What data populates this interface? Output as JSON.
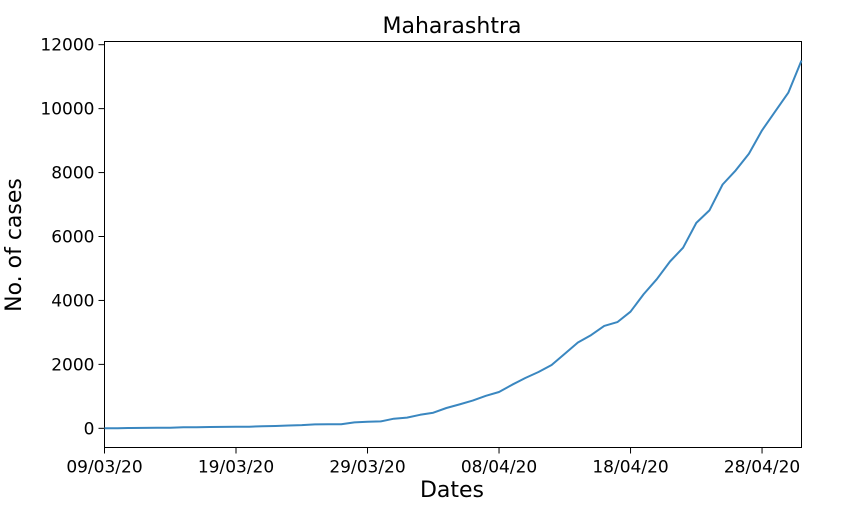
{
  "chart_data": {
    "type": "line",
    "title": "Maharashtra",
    "xlabel": "Dates",
    "ylabel": "No. of cases",
    "x_ticks": [
      "09/03/20",
      "19/03/20",
      "29/03/20",
      "08/04/20",
      "18/04/20",
      "28/04/20"
    ],
    "y_ticks": [
      "0",
      "2000",
      "4000",
      "6000",
      "8000",
      "10000",
      "12000"
    ],
    "ylim": [
      -600,
      12100
    ],
    "xlim": [
      "09/03/20",
      "01/05/20"
    ],
    "grid": false,
    "series": [
      {
        "color": "#3a87c0",
        "x": [
          "09/03/20",
          "10/03/20",
          "11/03/20",
          "12/03/20",
          "13/03/20",
          "14/03/20",
          "15/03/20",
          "16/03/20",
          "17/03/20",
          "18/03/20",
          "19/03/20",
          "20/03/20",
          "21/03/20",
          "22/03/20",
          "23/03/20",
          "24/03/20",
          "25/03/20",
          "26/03/20",
          "27/03/20",
          "28/03/20",
          "29/03/20",
          "30/03/20",
          "31/03/20",
          "01/04/20",
          "02/04/20",
          "03/04/20",
          "04/04/20",
          "05/04/20",
          "06/04/20",
          "07/04/20",
          "08/04/20",
          "09/04/20",
          "10/04/20",
          "11/04/20",
          "12/04/20",
          "13/04/20",
          "14/04/20",
          "15/04/20",
          "16/04/20",
          "17/04/20",
          "18/04/20",
          "19/04/20",
          "20/04/20",
          "21/04/20",
          "22/04/20",
          "23/04/20",
          "24/04/20",
          "25/04/20",
          "26/04/20",
          "27/04/20",
          "28/04/20",
          "29/04/20",
          "30/04/20",
          "01/05/20"
        ],
        "values": [
          2,
          5,
          11,
          14,
          17,
          19,
          32,
          33,
          41,
          45,
          49,
          52,
          64,
          74,
          89,
          101,
          122,
          125,
          130,
          186,
          203,
          215,
          302,
          335,
          423,
          490,
          635,
          748,
          868,
          1018,
          1135,
          1364,
          1574,
          1761,
          1982,
          2334,
          2684,
          2916,
          3205,
          3323,
          3648,
          4200,
          4666,
          5218,
          5649,
          6427,
          6817,
          7628,
          8068,
          8590,
          9318,
          9915,
          10498,
          11506
        ]
      }
    ]
  }
}
